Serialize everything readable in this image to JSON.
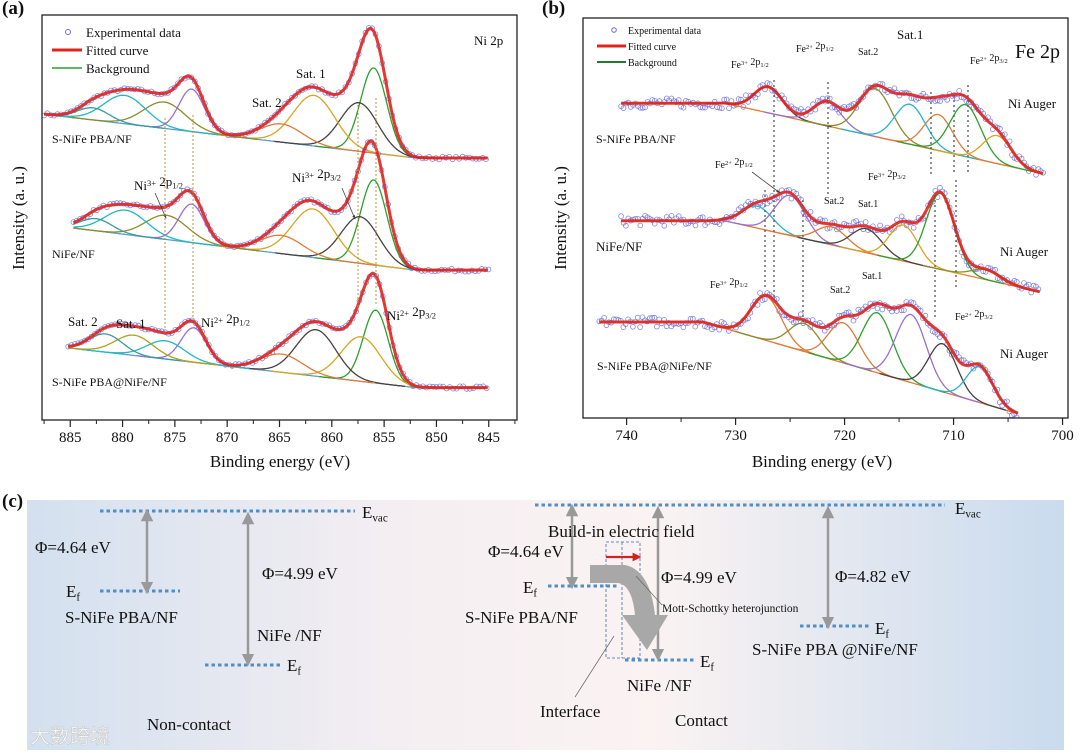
{
  "chart_data": [
    {
      "panel": "(a)",
      "type": "line",
      "title": "Ni 2p",
      "xlabel": "Binding energy (eV)",
      "ylabel": "Intensity (a. u.)",
      "xlim": [
        887.7,
        842.3
      ],
      "ylim": [
        0,
        100
      ],
      "xticks": [
        885,
        880,
        875,
        870,
        865,
        860,
        855,
        850,
        845
      ],
      "legend": {
        "position": "top-left",
        "items": [
          "Experimental data",
          "Fitted curve",
          "Background"
        ]
      },
      "colors": {
        "fit": "#e0241c",
        "points": "#6a6ee0",
        "background": "#5aa0c8",
        "guide": "#b8963a"
      },
      "series": [
        {
          "name": "S-NiFe PBA/NF",
          "range": [
            887.5,
            845
          ],
          "background": {
            "start": 887.5,
            "knee": 852,
            "hi": 75.5,
            "lo": 64.7
          },
          "peaks": [
            {
              "center": 856.0,
              "height": 21,
              "sigma": 1.25,
              "color": "#2ca02c"
            },
            {
              "center": 857.4,
              "height": 12,
              "sigma": 1.8,
              "color": "#4a4040"
            },
            {
              "center": 861.7,
              "height": 12.5,
              "sigma": 2.0,
              "color": "#d9a520"
            },
            {
              "center": 864.8,
              "height": 4.5,
              "sigma": 2.0,
              "color": "#e07b39"
            },
            {
              "center": 873.4,
              "height": 10.5,
              "sigma": 1.2,
              "color": "#9b6fd0"
            },
            {
              "center": 876.0,
              "height": 6.5,
              "sigma": 2.0,
              "color": "#8c8c2c"
            },
            {
              "center": 879.8,
              "height": 7,
              "sigma": 2.0,
              "color": "#20b8c8"
            },
            {
              "center": 882.8,
              "height": 3,
              "sigma": 1.5,
              "color": "#3a9aa0"
            }
          ]
        },
        {
          "name": "NiFe/NF",
          "range": [
            884.7,
            845
          ],
          "background": {
            "start": 884.7,
            "knee": 852,
            "hi": 47.4,
            "lo": 37
          },
          "peaks": [
            {
              "center": 856.0,
              "height": 21,
              "sigma": 1.25,
              "color": "#2ca02c"
            },
            {
              "center": 857.3,
              "height": 11.5,
              "sigma": 1.8,
              "color": "#4a4040"
            },
            {
              "center": 861.8,
              "height": 12,
              "sigma": 2.0,
              "color": "#d9a520"
            },
            {
              "center": 864.8,
              "height": 4.5,
              "sigma": 2.0,
              "color": "#e07b39"
            },
            {
              "center": 873.4,
              "height": 9.5,
              "sigma": 1.2,
              "color": "#9b6fd0"
            },
            {
              "center": 875.8,
              "height": 6,
              "sigma": 2.0,
              "color": "#8c8c2c"
            },
            {
              "center": 879.7,
              "height": 6,
              "sigma": 2.0,
              "color": "#20b8c8"
            },
            {
              "center": 882.5,
              "height": 3,
              "sigma": 1.5,
              "color": "#3a9aa0"
            }
          ]
        },
        {
          "name": "S-NiFe PBA@NiFe/NF",
          "range": [
            885.2,
            845
          ],
          "background": {
            "start": 885.2,
            "knee": 852,
            "hi": 17.8,
            "lo": 8
          },
          "peaks": [
            {
              "center": 855.8,
              "height": 18,
              "sigma": 1.2,
              "color": "#2ca02c"
            },
            {
              "center": 857.2,
              "height": 11,
              "sigma": 1.9,
              "color": "#d9a520"
            },
            {
              "center": 861.5,
              "height": 11.5,
              "sigma": 1.9,
              "color": "#4a4040"
            },
            {
              "center": 864.8,
              "height": 4.5,
              "sigma": 2.0,
              "color": "#e07b39"
            },
            {
              "center": 873.2,
              "height": 8.5,
              "sigma": 1.2,
              "color": "#9b6fd0"
            },
            {
              "center": 875.9,
              "height": 4.5,
              "sigma": 1.8,
              "color": "#20b8c8"
            },
            {
              "center": 878.9,
              "height": 5,
              "sigma": 1.8,
              "color": "#b0a020"
            },
            {
              "center": 881.6,
              "height": 4.5,
              "sigma": 1.6,
              "color": "#3a9aa0"
            }
          ]
        }
      ],
      "annotations": [
        "Sat. 1",
        "Sat. 2",
        "Ni^{3+} 2p_{1/2}",
        "Ni^{3+} 2p_{3/2}",
        "Sat. 2",
        "Sat. 1",
        "Ni^{2+} 2p_{1/2}",
        "Ni^{2+} 2p_{3/2}"
      ]
    },
    {
      "panel": "(b)",
      "type": "line",
      "title": "Fe 2p",
      "xlabel": "Binding energy (eV)",
      "ylabel": "Intensity (a. u.)",
      "xlim": [
        744,
        699.5
      ],
      "ylim": [
        0,
        100
      ],
      "xticks": [
        740,
        730,
        720,
        710,
        700
      ],
      "legend": {
        "position": "top-left",
        "items": [
          "Experimental data",
          "Fitted curve",
          "Background"
        ]
      },
      "colors": {
        "fit": "#e0241c",
        "points": "#6a6ee0",
        "background": "#e07b39",
        "guide": "#555555"
      },
      "series": [
        {
          "name": "S-NiFe PBA/NF",
          "range": [
            740.5,
            701.7
          ],
          "background": {
            "start": 740.5,
            "knee": 731,
            "hi": 78.7,
            "lo": 61
          },
          "peaks": [
            {
              "center": 727.0,
              "height": 6.5,
              "sigma": 1.3,
              "color": "#4a4040"
            },
            {
              "center": 721.6,
              "height": 6,
              "sigma": 1.3,
              "color": "#9b6fd0"
            },
            {
              "center": 717.2,
              "height": 12,
              "sigma": 1.5,
              "color": "#8c8c2c"
            },
            {
              "center": 714.0,
              "height": 10,
              "sigma": 1.4,
              "color": "#20b8c8"
            },
            {
              "center": 711.4,
              "height": 9,
              "sigma": 1.3,
              "color": "#e07b39"
            },
            {
              "center": 708.9,
              "height": 13,
              "sigma": 1.4,
              "color": "#2ca02c"
            },
            {
              "center": 706.0,
              "height": 7,
              "sigma": 1.3,
              "color": "#d9a520"
            }
          ]
        },
        {
          "name": "NiFe/NF",
          "range": [
            740.5,
            702
          ],
          "background": {
            "start": 740.5,
            "knee": 731,
            "hi": 49.3,
            "lo": 31.5
          },
          "peaks": [
            {
              "center": 728.0,
              "height": 5.5,
              "sigma": 1.4,
              "color": "#20b8c8"
            },
            {
              "center": 725.0,
              "height": 10,
              "sigma": 1.4,
              "color": "#9b6fd0"
            },
            {
              "center": 721.2,
              "height": 4.5,
              "sigma": 1.4,
              "color": "#e07b39"
            },
            {
              "center": 718.0,
              "height": 6,
              "sigma": 1.4,
              "color": "#4a4040"
            },
            {
              "center": 714.6,
              "height": 9,
              "sigma": 1.3,
              "color": "#d9a520"
            },
            {
              "center": 711.2,
              "height": 19,
              "sigma": 1.3,
              "color": "#2ca02c"
            },
            {
              "center": 707.0,
              "height": 2.5,
              "sigma": 1.3,
              "color": "#8c8c2c"
            }
          ]
        },
        {
          "name": "S-NiFe PBA@NiFe/NF",
          "range": [
            742.5,
            704
          ],
          "background": {
            "start": 742.5,
            "knee": 733,
            "hi": 24,
            "lo": 1
          },
          "peaks": [
            {
              "center": 727.2,
              "height": 11,
              "sigma": 1.4,
              "color": "#e07b39"
            },
            {
              "center": 723.7,
              "height": 7,
              "sigma": 1.4,
              "color": "#8c8c2c"
            },
            {
              "center": 720.1,
              "height": 10,
              "sigma": 1.4,
              "color": "#e07b39"
            },
            {
              "center": 717.0,
              "height": 15,
              "sigma": 1.4,
              "color": "#2ca02c"
            },
            {
              "center": 713.9,
              "height": 17,
              "sigma": 1.4,
              "color": "#9b6fd0"
            },
            {
              "center": 711.0,
              "height": 12,
              "sigma": 1.3,
              "color": "#4a4040"
            },
            {
              "center": 707.6,
              "height": 9,
              "sigma": 1.2,
              "color": "#20b8c8"
            }
          ]
        }
      ],
      "annotations": [
        "Fe^{3+} 2p_{1/2}",
        "Fe^{2+} 2p_{1/2}",
        "Sat.2",
        "Sat.1",
        "Fe^{2+} 2p_{3/2}",
        "Ni Auger",
        "Fe^{2+} 2p_{1/2}",
        "Fe^{3+} 2p_{3/2}",
        "Sat.2",
        "Sat.1",
        "Ni Auger",
        "Fe^{3+} 2p_{1/2}",
        "Sat.2",
        "Sat.1",
        "Fe^{2+} 2p_{3/2}",
        "Ni Auger"
      ]
    }
  ],
  "panel_c": {
    "label": "(c)",
    "left": {
      "evac": "E_{vac}",
      "phi1": "Φ=4.64 eV",
      "phi2": "Φ=4.99 eV",
      "ef1": "E_{f}",
      "ef2": "E_{f}",
      "mat1": "S-NiFe PBA/NF",
      "mat2": "NiFe /NF",
      "caption": "Non-contact"
    },
    "right": {
      "evac": "E_{vac}",
      "field": "Build-in  electric field",
      "phi1": "Φ=4.64 eV",
      "phi2": "Φ=4.99 eV",
      "phi3": "Φ=4.82 eV",
      "ef1": "E_{f}",
      "ef2": "E_{f}",
      "ef3": "E_{f}",
      "mat1": "S-NiFe PBA/NF",
      "mat2": "NiFe /NF",
      "mat3": "S-NiFe PBA @NiFe/NF",
      "junction": "Mott-Schottky heterojunction",
      "interface": "Interface",
      "caption": "Contact"
    },
    "watermark": "大数跨境"
  }
}
